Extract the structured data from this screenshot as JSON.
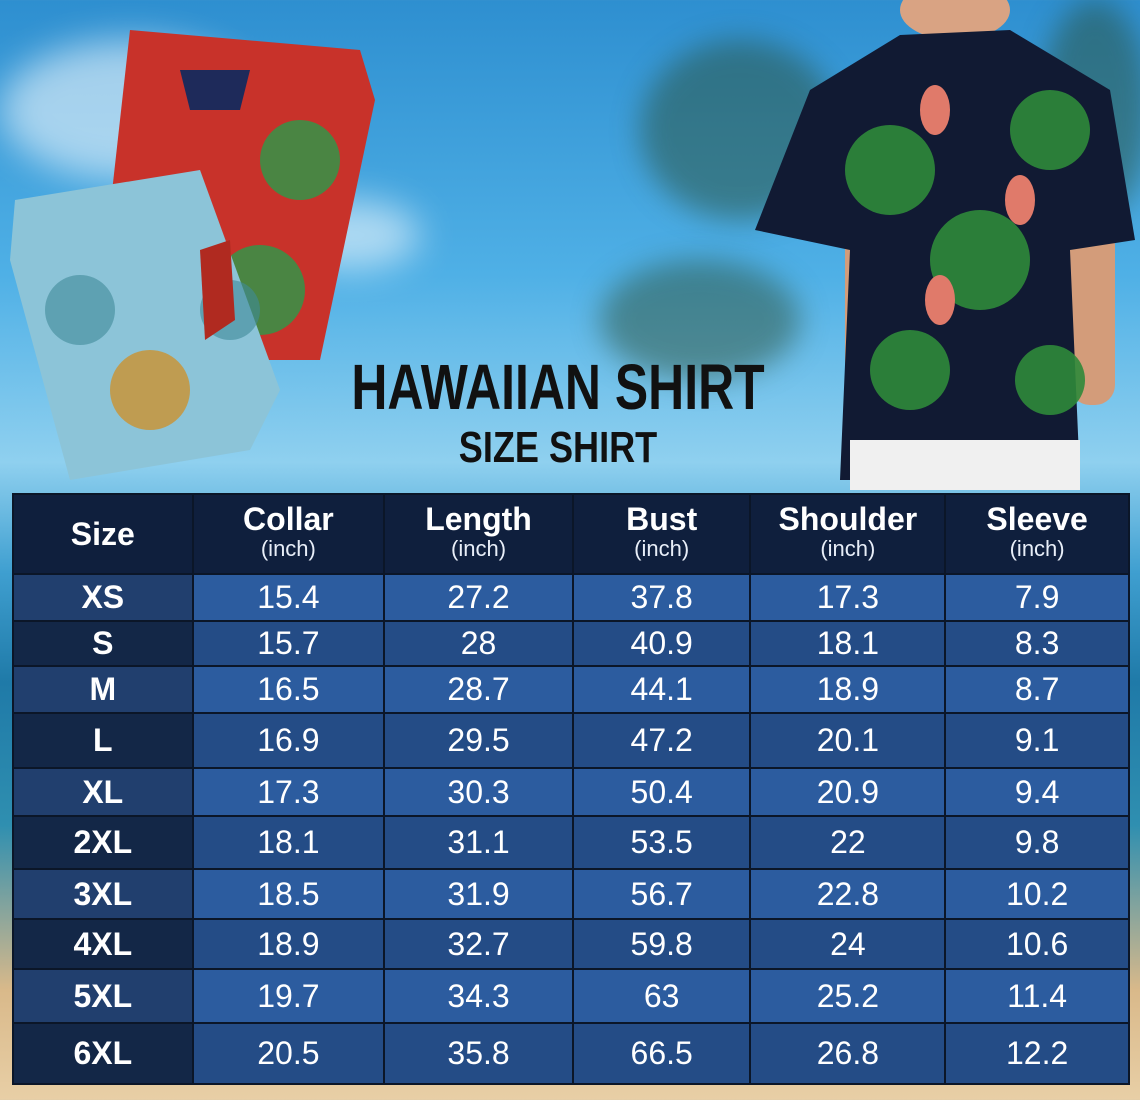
{
  "title": "HAWAIIAN SHIRT",
  "subtitle": "SIZE SHIRT",
  "table": {
    "headers": [
      {
        "label": "Size",
        "unit": ""
      },
      {
        "label": "Collar",
        "unit": "(inch)"
      },
      {
        "label": "Length",
        "unit": "(inch)"
      },
      {
        "label": "Bust",
        "unit": "(inch)"
      },
      {
        "label": "Shoulder",
        "unit": "(inch)"
      },
      {
        "label": "Sleeve",
        "unit": "(inch)"
      }
    ],
    "rows": [
      [
        "XS",
        "15.4",
        "27.2",
        "37.8",
        "17.3",
        "7.9"
      ],
      [
        "S",
        "15.7",
        "28",
        "40.9",
        "18.1",
        "8.3"
      ],
      [
        "M",
        "16.5",
        "28.7",
        "44.1",
        "18.9",
        "8.7"
      ],
      [
        "L",
        "16.9",
        "29.5",
        "47.2",
        "20.1",
        "9.1"
      ],
      [
        "XL",
        "17.3",
        "30.3",
        "50.4",
        "20.9",
        "9.4"
      ],
      [
        "2XL",
        "18.1",
        "31.1",
        "53.5",
        "22",
        "9.8"
      ],
      [
        "3XL",
        "18.5",
        "31.9",
        "56.7",
        "22.8",
        "10.2"
      ],
      [
        "4XL",
        "18.9",
        "32.7",
        "59.8",
        "24",
        "10.6"
      ],
      [
        "5XL",
        "19.7",
        "34.3",
        "63",
        "25.2",
        "11.4"
      ],
      [
        "6XL",
        "20.5",
        "35.8",
        "66.5",
        "26.8",
        "12.2"
      ]
    ]
  },
  "colors": {
    "header": "#0f1f3d",
    "row_light": "#2c5c9f",
    "row_dark": "#244c86"
  }
}
